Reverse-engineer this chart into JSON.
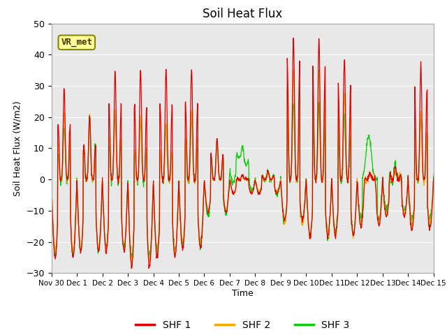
{
  "title": "Soil Heat Flux",
  "ylabel": "Soil Heat Flux (W/m2)",
  "xlabel": "Time",
  "ylim": [
    -30,
    50
  ],
  "bg_color": "#e8e8e8",
  "fig_color": "#ffffff",
  "series_colors": [
    "#dd0000",
    "#ffa500",
    "#00cc00"
  ],
  "series_labels": [
    "SHF 1",
    "SHF 2",
    "SHF 3"
  ],
  "annotation_text": "VR_met",
  "xtick_labels": [
    "Nov 30",
    "Dec 1",
    "Dec 2",
    "Dec 3",
    "Dec 4",
    "Dec 5",
    "Dec 6",
    "Dec 7",
    "Dec 8",
    "Dec 9",
    "Dec 10",
    "Dec 11",
    "Dec 12",
    "Dec 13",
    "Dec 14",
    "Dec 15"
  ],
  "ytick_vals": [
    -30,
    -20,
    -10,
    0,
    10,
    20,
    30,
    40,
    50
  ],
  "day_peaks_shf1": [
    29,
    20,
    35,
    36,
    35,
    35,
    26,
    3,
    5,
    45,
    45,
    39,
    2,
    4,
    37
  ],
  "day_peaks_shf2": [
    22,
    19,
    23,
    20,
    18,
    22,
    22,
    2,
    4,
    35,
    35,
    28,
    2,
    3,
    22
  ],
  "day_peaks_shf3": [
    17,
    20,
    20,
    19,
    17,
    20,
    20,
    7,
    5,
    25,
    24,
    21,
    14,
    5,
    20
  ],
  "day_troughs_shf1": [
    -25,
    -23,
    -23,
    -28,
    -25,
    -22,
    -21,
    -9,
    -9,
    -13,
    -18,
    -18,
    -15,
    -12,
    -16
  ],
  "day_troughs_shf2": [
    -23,
    -22,
    -22,
    -26,
    -24,
    -20,
    -20,
    -9,
    -8,
    -14,
    -18,
    -18,
    -14,
    -11,
    -14
  ],
  "day_troughs_shf3": [
    -24,
    -23,
    -22,
    -25,
    -23,
    -21,
    -20,
    -9,
    -8,
    -14,
    -18,
    -17,
    -13,
    -10,
    -13
  ]
}
